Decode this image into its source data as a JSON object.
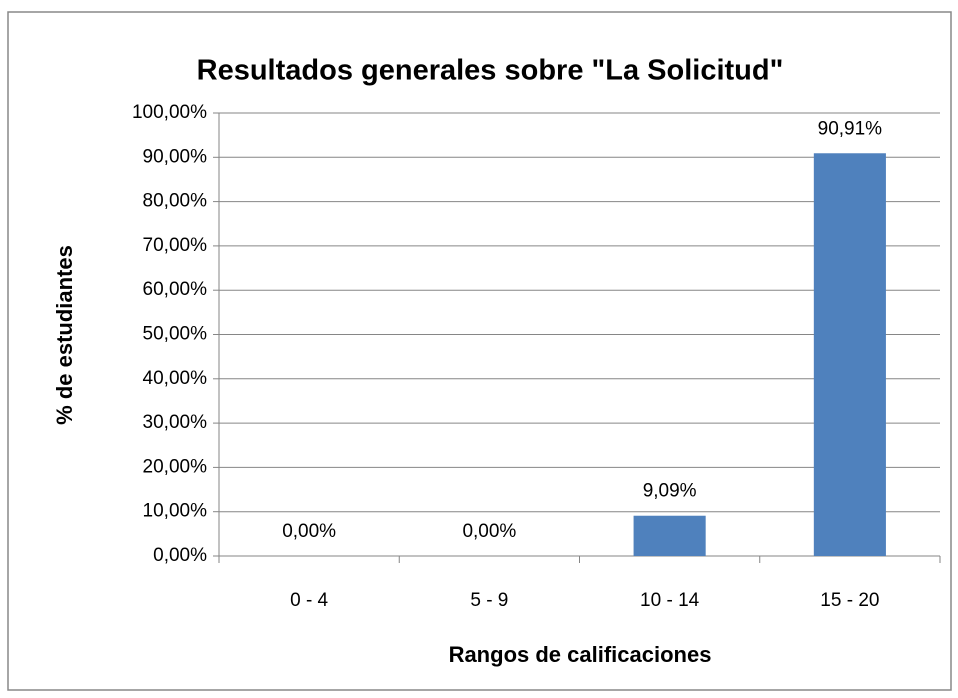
{
  "chart_data": {
    "type": "bar",
    "title": "Resultados generales sobre \"La Solicitud\"",
    "x_label": "Rangos de calificaciones",
    "y_label": "% de estudiantes",
    "categories": [
      "0 - 4",
      "5 - 9",
      "10 - 14",
      "15 - 20"
    ],
    "values": [
      0,
      0,
      9.09,
      90.91
    ],
    "value_labels": [
      "0,00%",
      "0,00%",
      "9,09%",
      "90,91%"
    ],
    "color": "#4f81bd",
    "ylim": [
      0,
      100
    ],
    "yticks": [
      {
        "value": 0,
        "label": "0,00%"
      },
      {
        "value": 10,
        "label": "10,00%"
      },
      {
        "value": 20,
        "label": "20,00%"
      },
      {
        "value": 30,
        "label": "30,00%"
      },
      {
        "value": 40,
        "label": "40,00%"
      },
      {
        "value": 50,
        "label": "50,00%"
      },
      {
        "value": 60,
        "label": "60,00%"
      },
      {
        "value": 70,
        "label": "70,00%"
      },
      {
        "value": 80,
        "label": "80,00%"
      },
      {
        "value": 90,
        "label": "90,00%"
      },
      {
        "value": 100,
        "label": "100,00%"
      }
    ],
    "grid": true
  }
}
